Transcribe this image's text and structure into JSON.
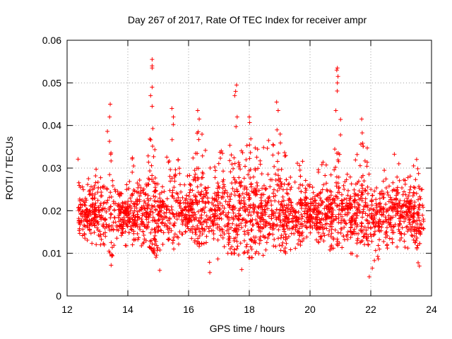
{
  "chart_data": {
    "type": "scatter",
    "title": "Day 267 of 2017, Rate Of TEC Index for receiver ampr",
    "xlabel": "GPS time / hours",
    "ylabel": "ROTI / TECUs",
    "xlim": [
      12,
      24
    ],
    "ylim": [
      0,
      0.06
    ],
    "x_ticks": [
      "12",
      "14",
      "16",
      "18",
      "20",
      "22",
      "24"
    ],
    "y_ticks": [
      "0",
      "0.01",
      "0.02",
      "0.03",
      "0.04",
      "0.05",
      "0.06"
    ],
    "grid": true,
    "legend": "none",
    "marker": "plus",
    "series_color": "#ff0000",
    "envelope": [
      [
        12.35,
        0.011,
        0.033
      ],
      [
        12.6,
        0.012,
        0.025
      ],
      [
        12.8,
        0.012,
        0.032
      ],
      [
        13.0,
        0.012,
        0.033
      ],
      [
        13.2,
        0.012,
        0.031
      ],
      [
        13.4,
        0.008,
        0.045
      ],
      [
        13.6,
        0.011,
        0.031
      ],
      [
        13.8,
        0.01,
        0.025
      ],
      [
        14.0,
        0.012,
        0.028
      ],
      [
        14.2,
        0.012,
        0.034
      ],
      [
        14.4,
        0.011,
        0.032
      ],
      [
        14.6,
        0.012,
        0.034
      ],
      [
        14.8,
        0.011,
        0.055
      ],
      [
        15.0,
        0.008,
        0.033
      ],
      [
        15.2,
        0.008,
        0.028
      ],
      [
        15.45,
        0.011,
        0.044
      ],
      [
        15.7,
        0.011,
        0.03
      ],
      [
        15.9,
        0.01,
        0.028
      ],
      [
        16.1,
        0.012,
        0.03
      ],
      [
        16.3,
        0.011,
        0.043
      ],
      [
        16.5,
        0.01,
        0.038
      ],
      [
        16.7,
        0.007,
        0.03
      ],
      [
        16.9,
        0.008,
        0.031
      ],
      [
        17.1,
        0.01,
        0.035
      ],
      [
        17.3,
        0.01,
        0.04
      ],
      [
        17.55,
        0.01,
        0.049
      ],
      [
        17.8,
        0.009,
        0.035
      ],
      [
        18.0,
        0.009,
        0.042
      ],
      [
        18.2,
        0.009,
        0.041
      ],
      [
        18.4,
        0.01,
        0.036
      ],
      [
        18.6,
        0.008,
        0.038
      ],
      [
        18.9,
        0.01,
        0.045
      ],
      [
        19.1,
        0.011,
        0.039
      ],
      [
        19.3,
        0.009,
        0.03
      ],
      [
        19.5,
        0.011,
        0.03
      ],
      [
        19.7,
        0.012,
        0.035
      ],
      [
        19.9,
        0.012,
        0.028
      ],
      [
        20.1,
        0.012,
        0.027
      ],
      [
        20.3,
        0.011,
        0.031
      ],
      [
        20.5,
        0.01,
        0.032
      ],
      [
        20.7,
        0.01,
        0.033
      ],
      [
        20.9,
        0.012,
        0.053
      ],
      [
        21.1,
        0.01,
        0.032
      ],
      [
        21.3,
        0.01,
        0.031
      ],
      [
        21.5,
        0.009,
        0.032
      ],
      [
        21.7,
        0.009,
        0.04
      ],
      [
        21.9,
        0.006,
        0.036
      ],
      [
        22.1,
        0.006,
        0.029
      ],
      [
        22.3,
        0.007,
        0.024
      ],
      [
        22.5,
        0.011,
        0.037
      ],
      [
        22.7,
        0.012,
        0.033
      ],
      [
        22.9,
        0.01,
        0.035
      ],
      [
        23.1,
        0.011,
        0.031
      ],
      [
        23.3,
        0.011,
        0.029
      ],
      [
        23.55,
        0.007,
        0.038
      ],
      [
        23.75,
        0.012,
        0.026
      ]
    ],
    "spikes": [
      [
        14.8,
        0.0555
      ],
      [
        14.8,
        0.054
      ],
      [
        14.8,
        0.0535
      ],
      [
        14.8,
        0.049
      ],
      [
        14.75,
        0.047
      ],
      [
        14.8,
        0.0445
      ],
      [
        13.42,
        0.045
      ],
      [
        13.4,
        0.042
      ],
      [
        15.45,
        0.044
      ],
      [
        15.5,
        0.042
      ],
      [
        16.3,
        0.0435
      ],
      [
        16.35,
        0.0415
      ],
      [
        17.58,
        0.0495
      ],
      [
        17.55,
        0.048
      ],
      [
        17.52,
        0.047
      ],
      [
        17.6,
        0.042
      ],
      [
        18.0,
        0.042
      ],
      [
        18.9,
        0.0455
      ],
      [
        18.95,
        0.0435
      ],
      [
        20.9,
        0.0535
      ],
      [
        20.88,
        0.053
      ],
      [
        20.92,
        0.0515
      ],
      [
        20.9,
        0.05
      ],
      [
        20.85,
        0.0435
      ],
      [
        21.7,
        0.0415
      ],
      [
        22.05,
        0.0065
      ],
      [
        21.95,
        0.0045
      ],
      [
        16.7,
        0.0055
      ],
      [
        17.75,
        0.0062
      ],
      [
        15.05,
        0.006
      ],
      [
        13.45,
        0.0072
      ],
      [
        23.6,
        0.007
      ]
    ]
  }
}
